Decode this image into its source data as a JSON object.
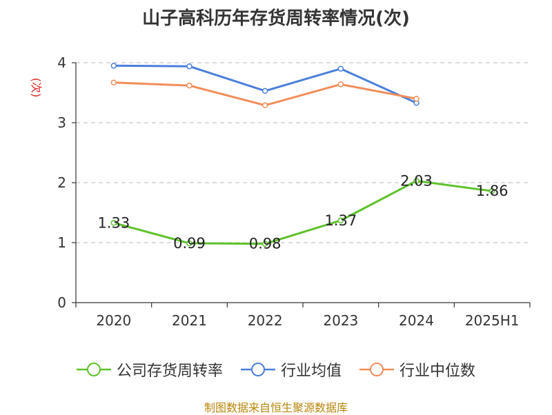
{
  "title": "山子高科历年存货周转率情况(次)",
  "source": "制图数据来自恒生聚源数据库",
  "chart_data": {
    "type": "line",
    "title": "山子高科历年存货周转率情况(次)",
    "ylabel": "(次)",
    "xlabel": "",
    "categories": [
      "2020",
      "2021",
      "2022",
      "2023",
      "2024",
      "2025H1"
    ],
    "ylim": [
      0,
      4
    ],
    "yticks": [
      0,
      1,
      2,
      3,
      4
    ],
    "grid": true,
    "legend_position": "bottom",
    "series": [
      {
        "name": "公司存货周转率",
        "color": "#5dc12a",
        "values": [
          1.33,
          0.99,
          0.98,
          1.37,
          2.03,
          1.86
        ],
        "labels": [
          "1.33",
          "0.99",
          "0.98",
          "1.37",
          "2.03",
          "1.86"
        ]
      },
      {
        "name": "行业均值",
        "color": "#4a7fdb",
        "values": [
          3.95,
          3.94,
          3.53,
          3.9,
          3.33,
          null
        ]
      },
      {
        "name": "行业中位数",
        "color": "#f28d59",
        "values": [
          3.67,
          3.62,
          3.29,
          3.64,
          3.4,
          null
        ]
      }
    ]
  }
}
